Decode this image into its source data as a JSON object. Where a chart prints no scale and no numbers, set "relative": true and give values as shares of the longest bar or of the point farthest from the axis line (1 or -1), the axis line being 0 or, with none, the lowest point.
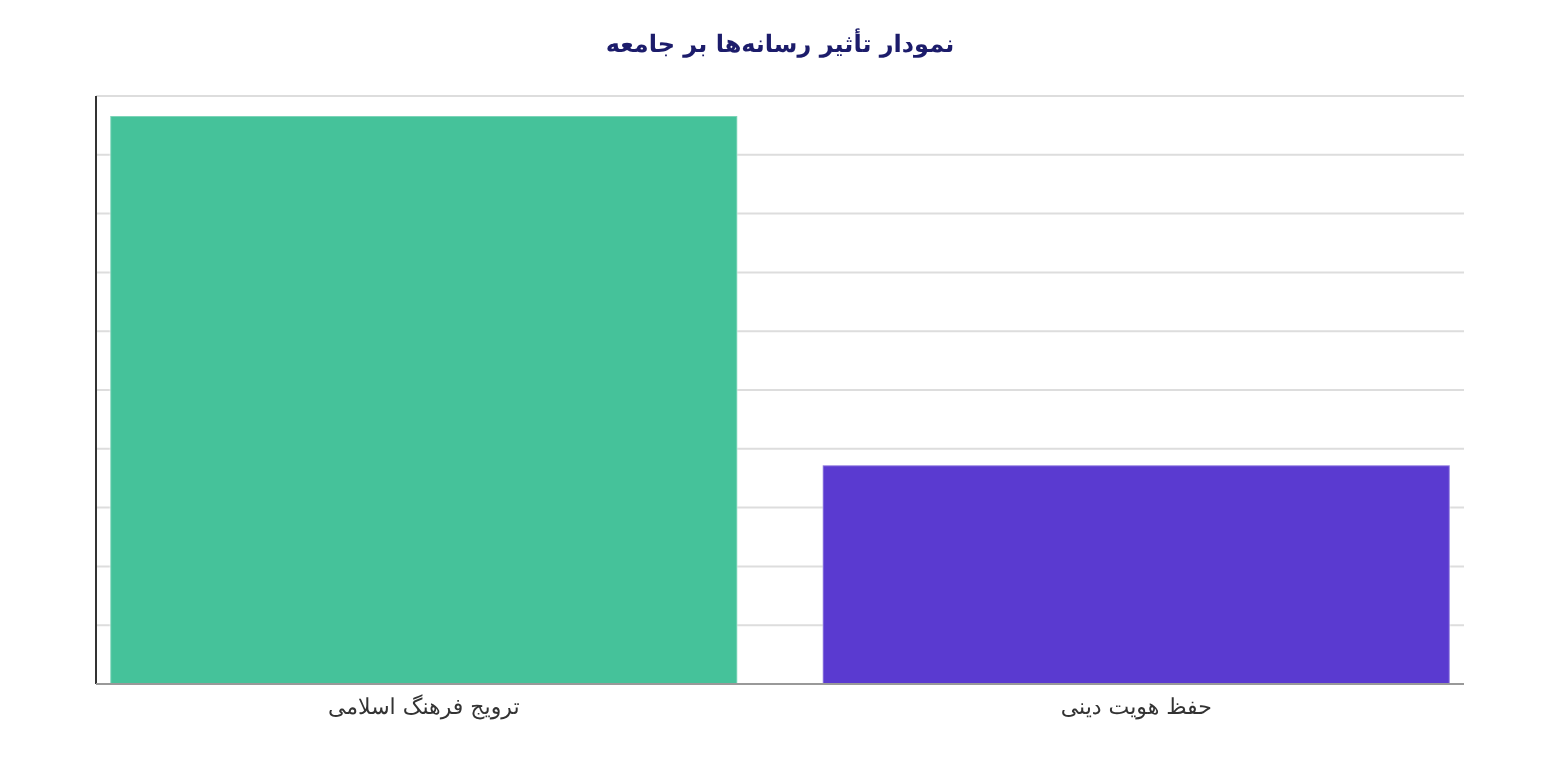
{
  "chart_data": {
    "type": "bar",
    "title": "نمودار تأثیر رسانه‌ها بر جامعه",
    "categories": [
      "ترویج فرهنگ اسلامی",
      "حفظ هویت دینی"
    ],
    "values": [
      1,
      0.385
    ],
    "colors": [
      "#45c29a",
      "#5a3ad0"
    ],
    "relative": true,
    "grid": "y"
  }
}
